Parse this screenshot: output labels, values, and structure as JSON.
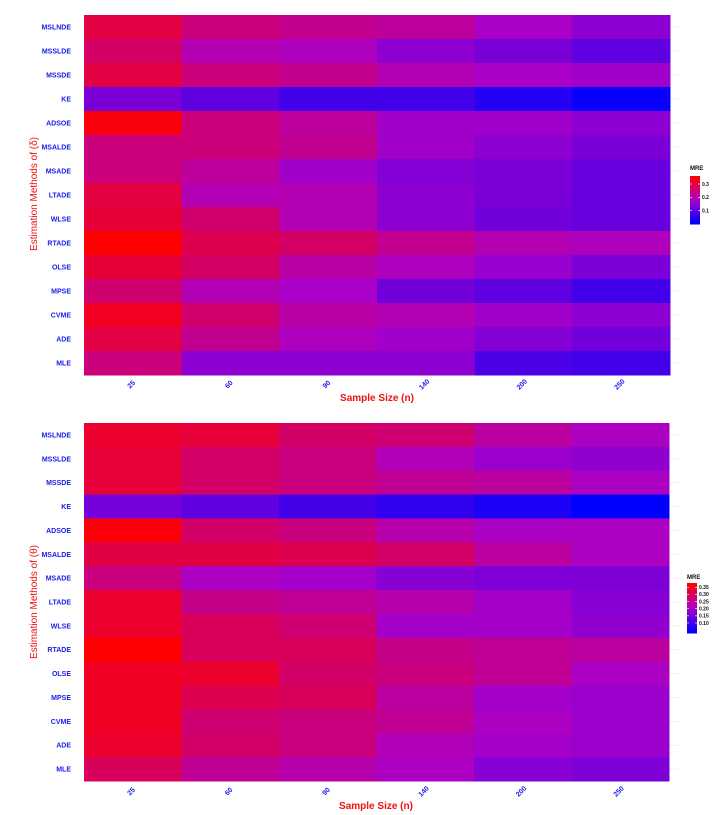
{
  "chart_data": [
    {
      "type": "heatmap",
      "xlabel": "Sample Size (n)",
      "ylabel": "Estimation Methods of (δ)",
      "x": [
        "25",
        "60",
        "90",
        "140",
        "200",
        "250"
      ],
      "y": [
        "MSLNDE",
        "MSSLDE",
        "MSSDE",
        "KE",
        "ADSOE",
        "MSALDE",
        "MSADE",
        "LTADE",
        "WLSE",
        "RTADE",
        "OLSE",
        "MPSE",
        "CVME",
        "ADE",
        "MLE"
      ],
      "values": [
        [
          0.3,
          0.25,
          0.23,
          0.22,
          0.18,
          0.15
        ],
        [
          0.27,
          0.2,
          0.19,
          0.15,
          0.13,
          0.1
        ],
        [
          0.3,
          0.25,
          0.23,
          0.2,
          0.18,
          0.17
        ],
        [
          0.13,
          0.1,
          0.07,
          0.07,
          0.04,
          0.01
        ],
        [
          0.35,
          0.25,
          0.22,
          0.17,
          0.17,
          0.15
        ],
        [
          0.25,
          0.25,
          0.23,
          0.17,
          0.15,
          0.13
        ],
        [
          0.25,
          0.22,
          0.17,
          0.14,
          0.13,
          0.11
        ],
        [
          0.3,
          0.2,
          0.2,
          0.15,
          0.13,
          0.11
        ],
        [
          0.31,
          0.26,
          0.2,
          0.15,
          0.12,
          0.11
        ],
        [
          0.36,
          0.29,
          0.27,
          0.23,
          0.2,
          0.19
        ],
        [
          0.31,
          0.27,
          0.21,
          0.19,
          0.16,
          0.13
        ],
        [
          0.26,
          0.2,
          0.18,
          0.12,
          0.1,
          0.07
        ],
        [
          0.33,
          0.26,
          0.21,
          0.2,
          0.17,
          0.15
        ],
        [
          0.3,
          0.23,
          0.19,
          0.17,
          0.14,
          0.12
        ],
        [
          0.25,
          0.15,
          0.15,
          0.15,
          0.08,
          0.07
        ]
      ],
      "legend": {
        "title": "MRE",
        "ticks": [
          "0.3",
          "0.2",
          "0.1"
        ],
        "tick_values": [
          0.3,
          0.2,
          0.1
        ],
        "min": 0.0,
        "max": 0.36,
        "position": "right"
      },
      "colors": {
        "low": "#0000ff",
        "high": "#ff0000"
      }
    },
    {
      "type": "heatmap",
      "xlabel": "Sample Size (n)",
      "ylabel": "Estimation Methods of (θ)",
      "x": [
        "25",
        "60",
        "90",
        "140",
        "200",
        "250"
      ],
      "y": [
        "MSLNDE",
        "MSSLDE",
        "MSSDE",
        "KE",
        "ADSOE",
        "MSALDE",
        "MSADE",
        "LTADE",
        "WLSE",
        "RTADE",
        "OLSE",
        "MPSE",
        "CVME",
        "ADE",
        "MLE"
      ],
      "values": [
        [
          0.34,
          0.33,
          0.29,
          0.28,
          0.24,
          0.21
        ],
        [
          0.33,
          0.29,
          0.27,
          0.22,
          0.19,
          0.18
        ],
        [
          0.33,
          0.29,
          0.27,
          0.25,
          0.24,
          0.21
        ],
        [
          0.15,
          0.13,
          0.1,
          0.08,
          0.06,
          0.03
        ],
        [
          0.37,
          0.29,
          0.27,
          0.23,
          0.21,
          0.21
        ],
        [
          0.32,
          0.32,
          0.31,
          0.29,
          0.24,
          0.21
        ],
        [
          0.27,
          0.21,
          0.2,
          0.17,
          0.16,
          0.16
        ],
        [
          0.34,
          0.26,
          0.25,
          0.23,
          0.2,
          0.17
        ],
        [
          0.34,
          0.3,
          0.28,
          0.2,
          0.2,
          0.18
        ],
        [
          0.38,
          0.3,
          0.3,
          0.26,
          0.25,
          0.24
        ],
        [
          0.35,
          0.34,
          0.29,
          0.27,
          0.25,
          0.21
        ],
        [
          0.35,
          0.31,
          0.3,
          0.24,
          0.2,
          0.19
        ],
        [
          0.35,
          0.28,
          0.27,
          0.25,
          0.21,
          0.19
        ],
        [
          0.34,
          0.29,
          0.27,
          0.22,
          0.2,
          0.19
        ],
        [
          0.3,
          0.25,
          0.23,
          0.21,
          0.17,
          0.16
        ]
      ],
      "legend": {
        "title": "MRE",
        "ticks": [
          "0.35",
          "0.30",
          "0.25",
          "0.20",
          "0.15",
          "0.10"
        ],
        "tick_values": [
          0.35,
          0.3,
          0.25,
          0.2,
          0.15,
          0.1
        ],
        "min": 0.03,
        "max": 0.38,
        "position": "right"
      },
      "colors": {
        "low": "#0000ff",
        "high": "#ff0000"
      }
    }
  ]
}
